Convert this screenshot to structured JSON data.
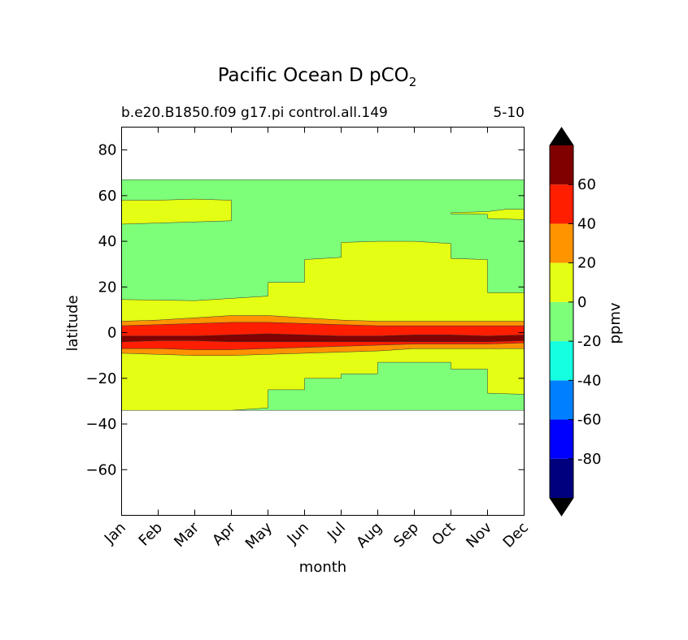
{
  "chart_data": {
    "type": "heatmap",
    "title": "Pacific Ocean D pCO",
    "title_subscript": "2",
    "subtitle_left": "b.e20.B1850.f09 g17.pi control.all.149",
    "subtitle_right": "5-10",
    "xlabel": "month",
    "ylabel": "latitude",
    "x_tick_labels": [
      "Jan",
      "Feb",
      "Mar",
      "Apr",
      "May",
      "Jun",
      "Jul",
      "Aug",
      "Sep",
      "Oct",
      "Nov",
      "Dec"
    ],
    "ylim": [
      -80,
      90
    ],
    "y_ticks": [
      80,
      60,
      40,
      20,
      0,
      -20,
      -40,
      -60
    ],
    "y_tick_labels": [
      "80",
      "60",
      "40",
      "20",
      "0",
      "−20",
      "−40",
      "−60"
    ],
    "data_lat_range": [
      -34,
      67
    ],
    "colorbar": {
      "label": "ppmv",
      "levels": [
        -100,
        -80,
        -60,
        -40,
        -20,
        0,
        20,
        40,
        60,
        80
      ],
      "tick_values": [
        -80,
        -60,
        -40,
        -20,
        0,
        20,
        40,
        60
      ],
      "tick_labels": [
        "-80",
        "-60",
        "-40",
        "-20",
        "0",
        "20",
        "40",
        "60"
      ],
      "colors": [
        "#00007f",
        "#0000ff",
        "#0080ff",
        "#15ffe1",
        "#7dff7a",
        "#e4ff13",
        "#ff9400",
        "#ff1e00",
        "#800000"
      ],
      "under_color": "#000000",
      "over_color": "#000000",
      "extend": "both"
    },
    "regions": [
      {
        "range": "-20 to 0 ppmv",
        "color": "#7dff7a",
        "desc": "background over data domain",
        "points": [
          [
            0,
            -34
          ],
          [
            11,
            -34
          ],
          [
            11,
            67
          ],
          [
            0,
            67
          ]
        ]
      },
      {
        "range": "0 to 20 ppmv",
        "color": "#e4ff13",
        "points": [
          [
            0,
            14.5
          ],
          [
            2,
            14
          ],
          [
            3,
            15
          ],
          [
            4,
            16
          ],
          [
            4,
            22
          ],
          [
            5,
            22
          ],
          [
            5,
            32
          ],
          [
            6,
            33
          ],
          [
            6,
            39.5
          ],
          [
            7,
            40
          ],
          [
            8,
            40
          ],
          [
            9,
            39
          ],
          [
            9,
            32.5
          ],
          [
            10,
            32
          ],
          [
            10,
            17.5
          ],
          [
            11,
            17.5
          ],
          [
            11,
            -27
          ],
          [
            10,
            -26.5
          ],
          [
            10,
            -16
          ],
          [
            9,
            -16
          ],
          [
            9,
            -13
          ],
          [
            7,
            -13
          ],
          [
            7,
            -18
          ],
          [
            6,
            -18
          ],
          [
            6,
            -20
          ],
          [
            5,
            -20
          ],
          [
            5,
            -25
          ],
          [
            4,
            -25
          ],
          [
            4,
            -33
          ],
          [
            3,
            -34
          ],
          [
            0,
            -34
          ]
        ]
      },
      {
        "range": "0 to 20 ppmv",
        "color": "#e4ff13",
        "points": [
          [
            0,
            58
          ],
          [
            1,
            58
          ],
          [
            2,
            58.5
          ],
          [
            3,
            58
          ],
          [
            3,
            49
          ],
          [
            2,
            48.5
          ],
          [
            1,
            48
          ],
          [
            0,
            47.5
          ]
        ]
      },
      {
        "range": "0 to 20 ppmv",
        "color": "#e4ff13",
        "points": [
          [
            9,
            52.5
          ],
          [
            10,
            53
          ],
          [
            10.5,
            54
          ],
          [
            11,
            54
          ],
          [
            11,
            49.5
          ],
          [
            10,
            50
          ],
          [
            10,
            51.8
          ],
          [
            9,
            52
          ]
        ]
      },
      {
        "range": "20 to 40 ppmv",
        "color": "#ff9400",
        "points": [
          [
            0,
            5
          ],
          [
            1,
            5.5
          ],
          [
            2,
            6.5
          ],
          [
            3,
            7.5
          ],
          [
            4,
            7.5
          ],
          [
            5,
            6.5
          ],
          [
            6,
            5.5
          ],
          [
            7,
            5
          ],
          [
            8,
            5
          ],
          [
            9,
            5
          ],
          [
            10,
            5
          ],
          [
            11,
            5
          ],
          [
            11,
            -7
          ],
          [
            10,
            -7
          ],
          [
            9,
            -7
          ],
          [
            8,
            -7
          ],
          [
            7,
            -8
          ],
          [
            6,
            -8.5
          ],
          [
            5,
            -9
          ],
          [
            4,
            -9.5
          ],
          [
            3,
            -10
          ],
          [
            2,
            -10
          ],
          [
            1,
            -9.5
          ],
          [
            0,
            -9
          ]
        ]
      },
      {
        "range": "40 to 60 ppmv",
        "color": "#ff1e00",
        "points": [
          [
            0,
            3
          ],
          [
            1,
            3.5
          ],
          [
            2,
            4
          ],
          [
            3,
            4.5
          ],
          [
            4,
            4.5
          ],
          [
            5,
            4
          ],
          [
            6,
            3.5
          ],
          [
            7,
            3
          ],
          [
            8,
            3
          ],
          [
            9,
            3
          ],
          [
            10,
            3
          ],
          [
            11,
            3
          ],
          [
            11,
            -4.5
          ],
          [
            10,
            -5
          ],
          [
            9,
            -5
          ],
          [
            8,
            -5
          ],
          [
            7,
            -5.5
          ],
          [
            6,
            -6
          ],
          [
            5,
            -6.5
          ],
          [
            4,
            -7
          ],
          [
            3,
            -7.5
          ],
          [
            2,
            -7.5
          ],
          [
            1,
            -7
          ],
          [
            0,
            -7
          ]
        ]
      },
      {
        "range": "60 to 80 ppmv",
        "color": "#800000",
        "points": [
          [
            0,
            -1.5
          ],
          [
            1,
            -1.5
          ],
          [
            2,
            -1.5
          ],
          [
            3,
            -1
          ],
          [
            4,
            -0.5
          ],
          [
            5,
            -1
          ],
          [
            6,
            -1.5
          ],
          [
            7,
            -1.5
          ],
          [
            8,
            -1
          ],
          [
            9,
            -1
          ],
          [
            10,
            -1.5
          ],
          [
            11,
            -1
          ],
          [
            11,
            -3.5
          ],
          [
            10,
            -4
          ],
          [
            9,
            -4
          ],
          [
            8,
            -4
          ],
          [
            7,
            -4
          ],
          [
            6,
            -4
          ],
          [
            5,
            -4
          ],
          [
            4,
            -4
          ],
          [
            3,
            -4
          ],
          [
            2,
            -3.5
          ],
          [
            1,
            -3.5
          ],
          [
            0,
            -4
          ]
        ]
      }
    ]
  }
}
